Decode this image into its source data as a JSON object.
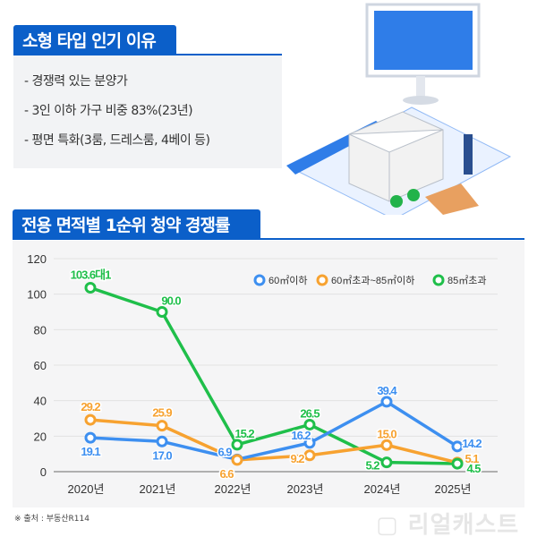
{
  "section1": {
    "title": "소형 타입 인기 이유",
    "bullets": [
      "- 경쟁력 있는 분양가",
      "- 3인 이하 가구 비중 83%(23년)",
      "- 평면 특화(3룸, 드레스룸, 4베이 등)"
    ]
  },
  "section2": {
    "title": "전용 면적별 1순위 청약 경쟁률"
  },
  "source": "※ 출처 : 부동산R114",
  "watermark": "리얼캐스트",
  "colors": {
    "brand": "#0b5fc9",
    "blue": "#3d8ff0",
    "orange": "#f7a230",
    "green": "#1fbf4a"
  },
  "chart_data": {
    "type": "line",
    "categories": [
      "2020년",
      "2021년",
      "2022년",
      "2023년",
      "2024년",
      "2025년"
    ],
    "ylim": [
      0,
      120
    ],
    "yticks": [
      0,
      20,
      40,
      60,
      80,
      100,
      120
    ],
    "grid": true,
    "legend_position": "top-right",
    "series": [
      {
        "name": "60㎡이하",
        "color": "#3d8ff0",
        "values": [
          19.1,
          17.0,
          6.9,
          16.2,
          39.4,
          14.2
        ],
        "labels": [
          "19.1",
          "17.0",
          "6.9",
          "16.2",
          "39.4",
          "14.2"
        ]
      },
      {
        "name": "60㎡초과~85㎡이하",
        "color": "#f7a230",
        "values": [
          29.2,
          25.9,
          6.6,
          9.2,
          15.0,
          5.1
        ],
        "labels": [
          "29.2",
          "25.9",
          "6.6",
          "9.2",
          "15.0",
          "5.1"
        ]
      },
      {
        "name": "85㎡초과",
        "color": "#1fbf4a",
        "values": [
          103.6,
          90.0,
          15.2,
          26.5,
          5.2,
          4.5
        ],
        "labels": [
          "103.6대1",
          "90.0",
          "15.2",
          "26.5",
          "5.2",
          "4.5"
        ]
      }
    ]
  }
}
